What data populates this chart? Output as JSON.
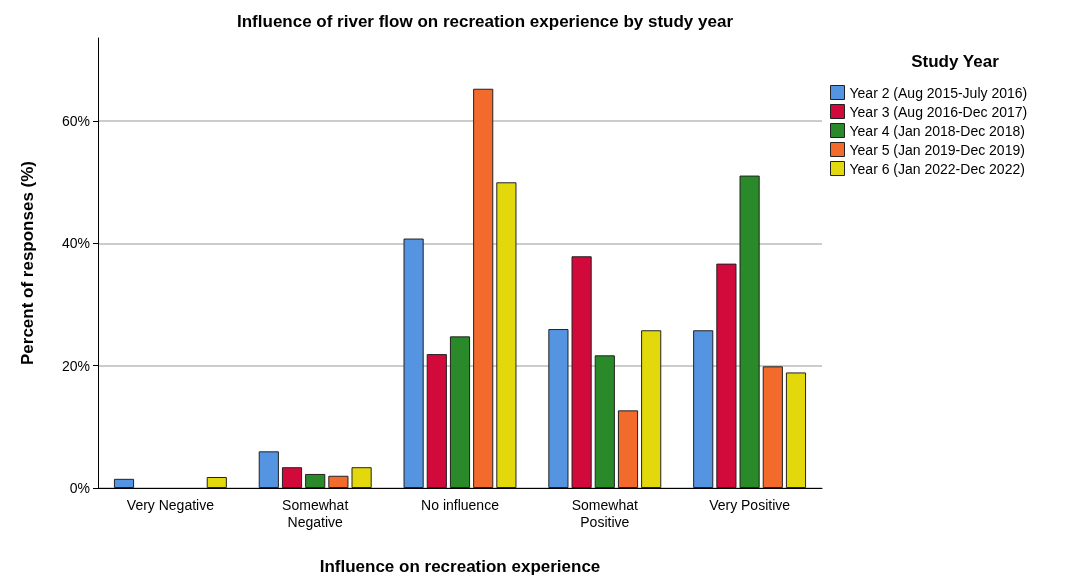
{
  "chart_data": {
    "type": "bar",
    "title": "Influence of river flow on recreation experience by study year",
    "xlabel": "Influence on recreation experience",
    "ylabel": "Percent of responses (%)",
    "legend_title": "Study Year",
    "categories": [
      "Very Negative",
      "Somewhat\nNegative",
      "No influence",
      "Somewhat\nPositive",
      "Very Positive"
    ],
    "series": [
      {
        "name": "Year 2 (Aug 2015-July 2016)",
        "color": "#5594e0",
        "values": [
          1.5,
          6.0,
          40.8,
          26.0,
          25.8
        ]
      },
      {
        "name": "Year 3 (Aug 2016-Dec 2017)",
        "color": "#d20a3c",
        "values": [
          0,
          3.4,
          21.9,
          37.9,
          36.7
        ]
      },
      {
        "name": "Year 4 (Jan 2018-Dec 2018)",
        "color": "#2a8a2a",
        "values": [
          0,
          2.3,
          24.8,
          21.7,
          51.1
        ]
      },
      {
        "name": "Year 5 (Jan 2019-Dec 2019)",
        "color": "#f26a2c",
        "values": [
          0,
          2.0,
          65.3,
          12.7,
          19.9
        ]
      },
      {
        "name": "Year 6 (Jan 2022-Dec 2022)",
        "color": "#e3d80c",
        "values": [
          1.8,
          3.4,
          50.0,
          25.8,
          18.9
        ]
      }
    ],
    "ylim": [
      0,
      73.6
    ],
    "yticks": [
      {
        "value": 0,
        "label": "0%"
      },
      {
        "value": 20,
        "label": "20%"
      },
      {
        "value": 40,
        "label": "40%"
      },
      {
        "value": 60,
        "label": "60%"
      }
    ],
    "grid": "y",
    "legend": "right"
  }
}
